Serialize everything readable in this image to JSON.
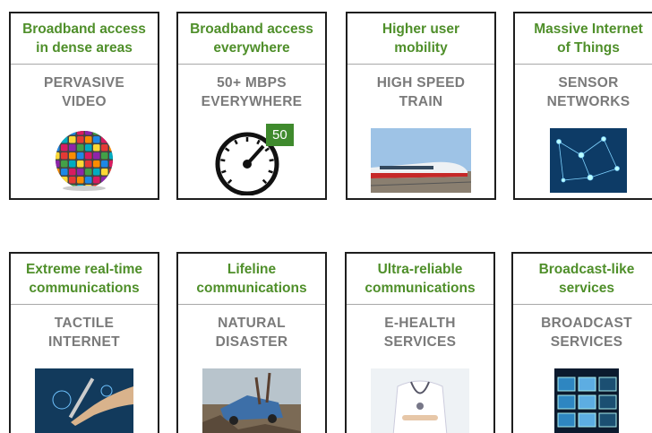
{
  "cards": [
    {
      "title": [
        "Broadband access",
        "in dense areas"
      ],
      "subtitle": [
        "PERVASIVE",
        "VIDEO"
      ]
    },
    {
      "title": [
        "Broadband access",
        "everywhere"
      ],
      "subtitle": [
        "50+ MBPS",
        "EVERYWHERE"
      ],
      "badge": "50"
    },
    {
      "title": [
        "Higher user",
        "mobility"
      ],
      "subtitle": [
        "HIGH SPEED",
        "TRAIN"
      ]
    },
    {
      "title": [
        "Massive Internet",
        "of Things"
      ],
      "subtitle": [
        "SENSOR",
        "NETWORKS"
      ]
    },
    {
      "title": [
        "Extreme real-time",
        "communications"
      ],
      "subtitle": [
        "TACTILE",
        "INTERNET"
      ]
    },
    {
      "title": [
        "Lifeline",
        "communications"
      ],
      "subtitle": [
        "NATURAL",
        "DISASTER"
      ]
    },
    {
      "title": [
        "Ultra-reliable",
        "communications"
      ],
      "subtitle": [
        "E-HEALTH",
        "SERVICES"
      ]
    },
    {
      "title": [
        "Broadcast-like",
        "services"
      ],
      "subtitle": [
        "BROADCAST",
        "SERVICES"
      ]
    }
  ]
}
